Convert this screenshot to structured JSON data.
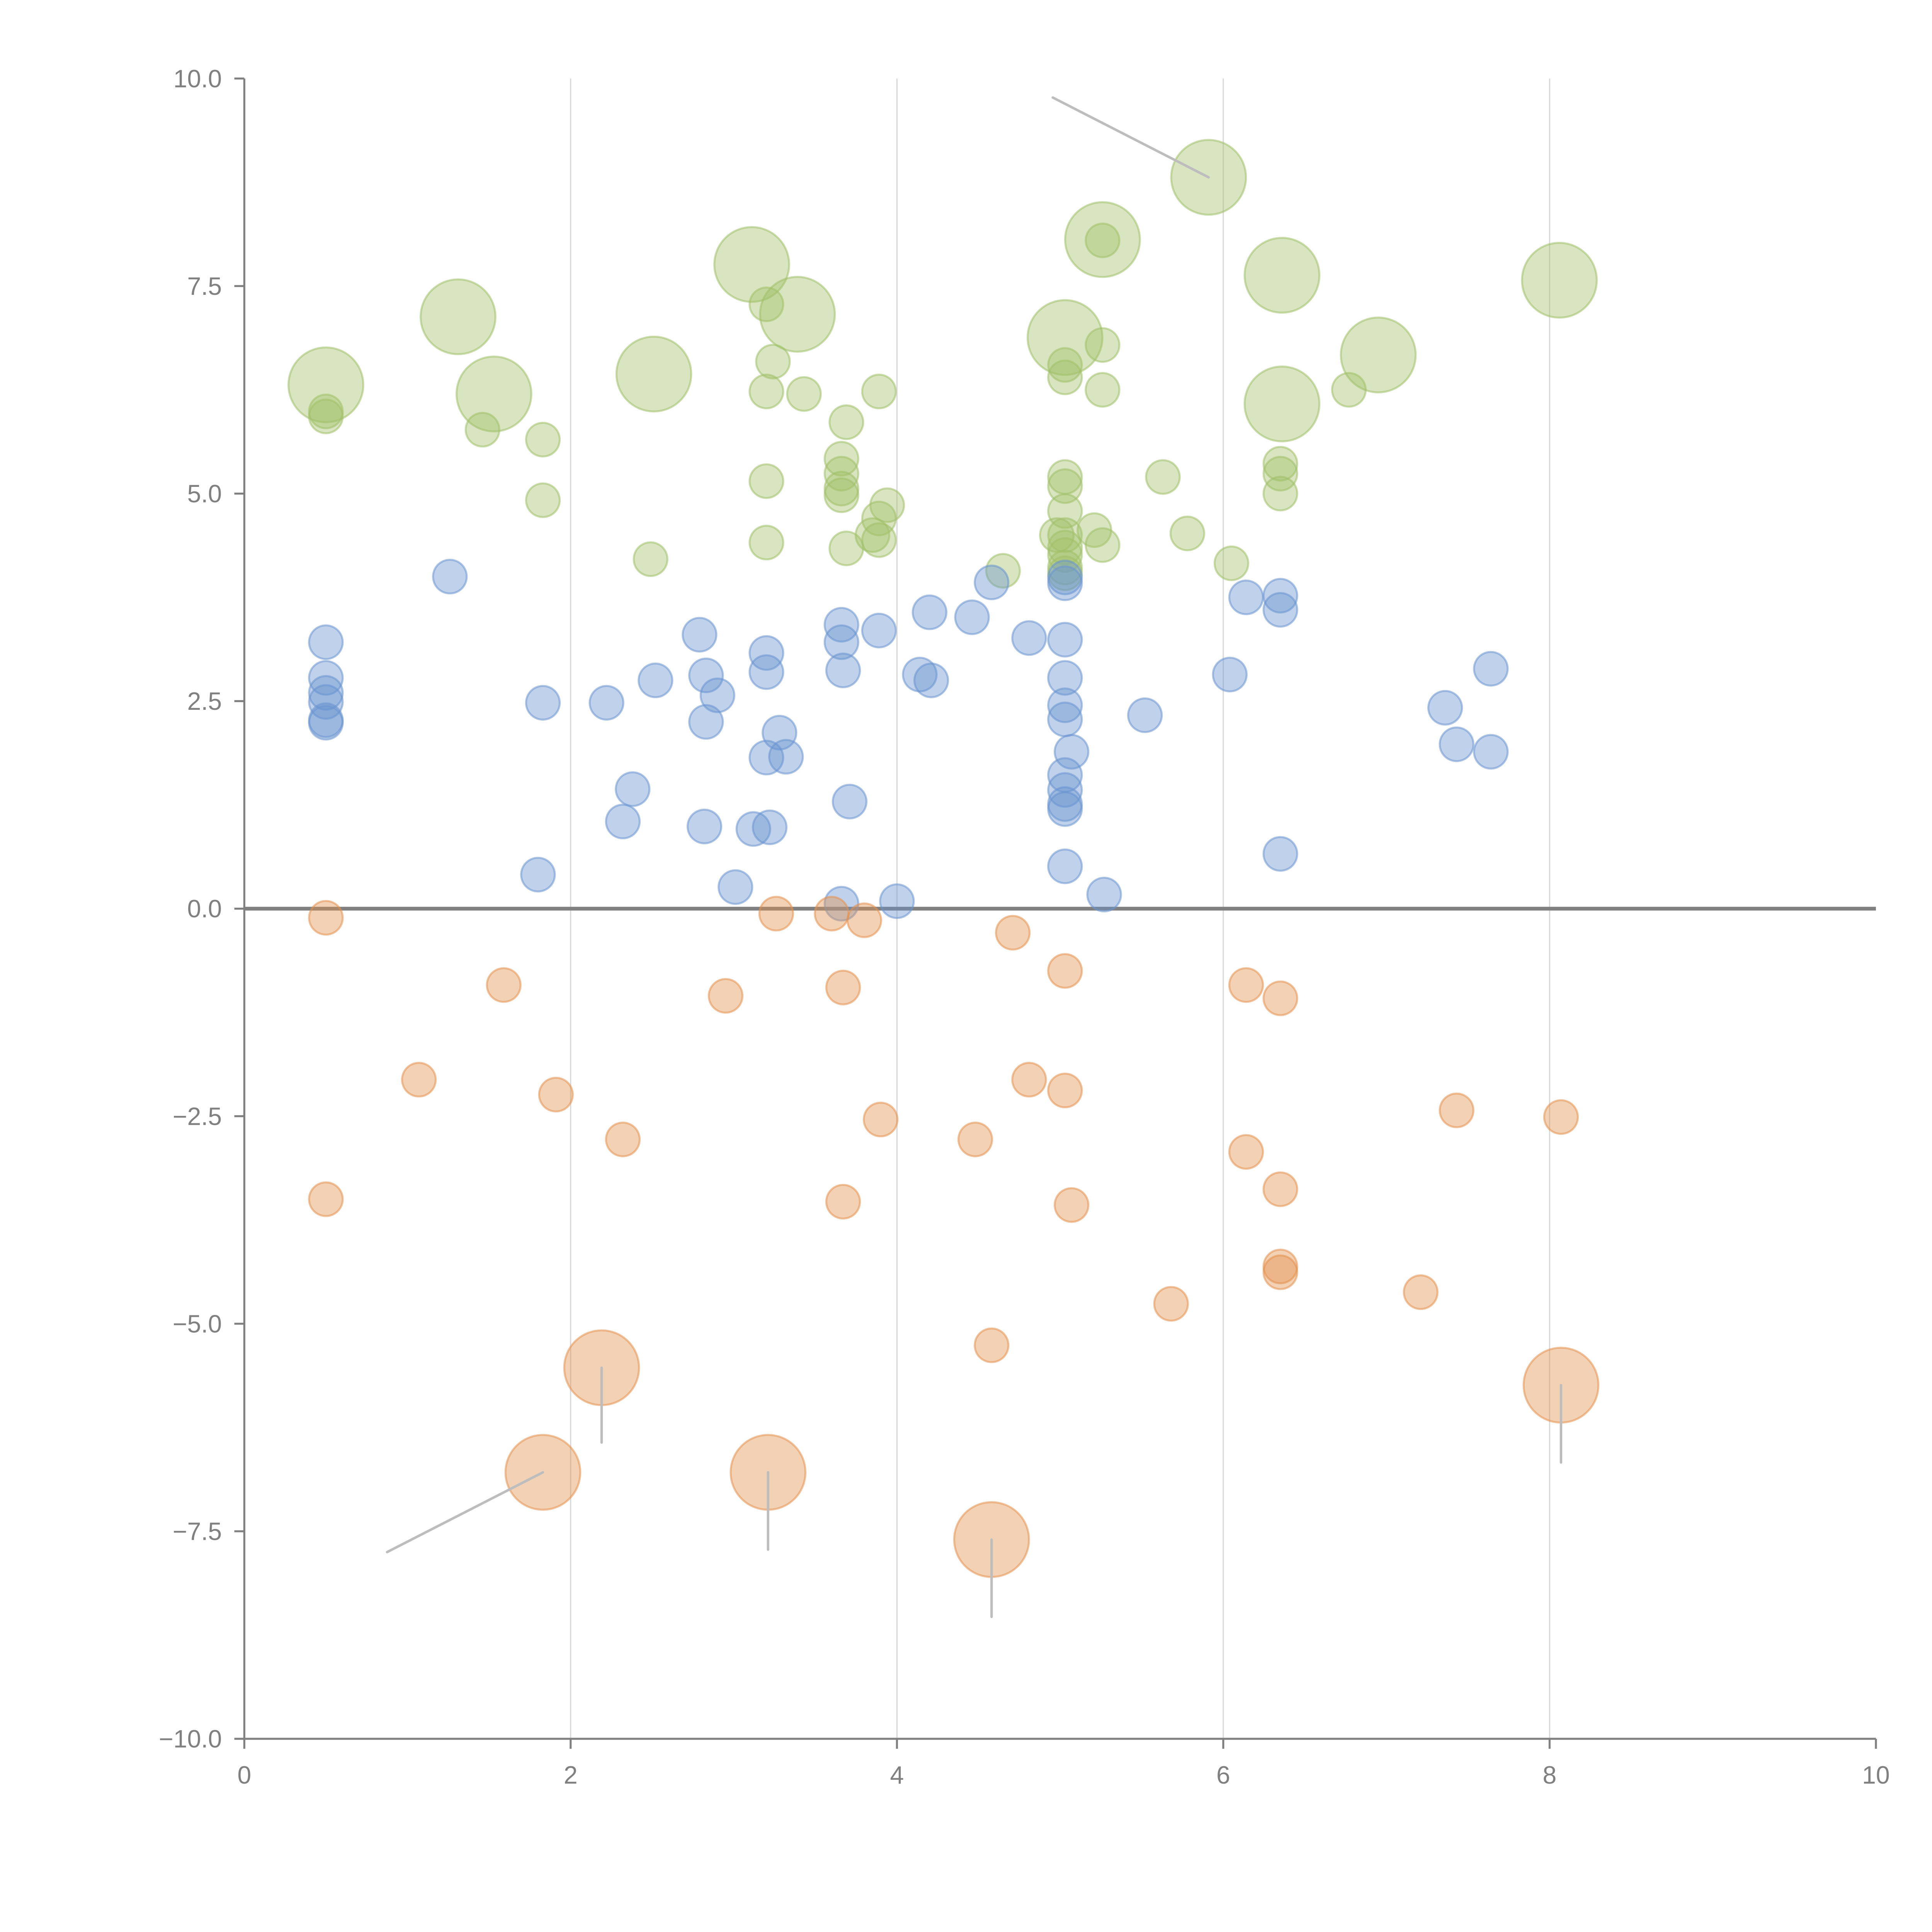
{
  "chart_data": {
    "type": "scatter",
    "title": "",
    "xlabel": "",
    "ylabel": "",
    "xlim": [
      0,
      10
    ],
    "ylim": [
      -10,
      10
    ],
    "x_ticks": [
      "0",
      "2",
      "4",
      "6",
      "8",
      "10"
    ],
    "x_tick_values": [
      0,
      2,
      4,
      6,
      8,
      10
    ],
    "y_ticks": [
      "10.0",
      "7.5",
      "5.0",
      "2.5",
      "0.0",
      "−2.5",
      "−5.0",
      "−7.5",
      "−10.0"
    ],
    "y_tick_values": [
      10,
      7.5,
      5,
      2.5,
      0,
      -2.5,
      -5,
      -7.5,
      -10
    ],
    "grid": "vertical",
    "reference_line_y": 0,
    "legend": "none",
    "series": [
      {
        "name": "green",
        "color": "#a1c06a",
        "points": [
          [
            0.5,
            5.93
          ],
          [
            0.5,
            5.99
          ],
          [
            1.46,
            5.77
          ],
          [
            1.83,
            5.65
          ],
          [
            1.83,
            4.92
          ],
          [
            2.49,
            4.21
          ],
          [
            3.2,
            7.28
          ],
          [
            3.24,
            6.59
          ],
          [
            3.2,
            6.23
          ],
          [
            3.43,
            6.2
          ],
          [
            3.2,
            5.15
          ],
          [
            3.2,
            4.41
          ],
          [
            3.69,
            5.86
          ],
          [
            3.66,
            5.42
          ],
          [
            3.66,
            5.24
          ],
          [
            3.66,
            5.06
          ],
          [
            3.66,
            4.98
          ],
          [
            3.69,
            4.34
          ],
          [
            3.89,
            6.23
          ],
          [
            3.94,
            4.86
          ],
          [
            3.89,
            4.7
          ],
          [
            3.85,
            4.5
          ],
          [
            3.89,
            4.44
          ],
          [
            4.65,
            4.07
          ],
          [
            5.03,
            5.2
          ],
          [
            5.03,
            5.09
          ],
          [
            5.03,
            4.79
          ],
          [
            5.03,
            4.5
          ],
          [
            5.03,
            4.35
          ],
          [
            5.03,
            4.26
          ],
          [
            5.03,
            4.11
          ],
          [
            5.03,
            4.04
          ],
          [
            4.98,
            4.5
          ],
          [
            5.21,
            4.56
          ],
          [
            5.26,
            4.38
          ],
          [
            5.26,
            6.79
          ],
          [
            5.26,
            6.25
          ],
          [
            5.26,
            8.05
          ],
          [
            5.03,
            6.4
          ],
          [
            5.03,
            6.55
          ],
          [
            5.78,
            4.52
          ],
          [
            6.05,
            4.16
          ],
          [
            6.35,
            5.36
          ],
          [
            6.35,
            5.24
          ],
          [
            6.35,
            5.0
          ],
          [
            6.77,
            6.25
          ],
          [
            5.63,
            5.2
          ]
        ],
        "large_points": [
          [
            0.5,
            6.31
          ],
          [
            1.31,
            7.13
          ],
          [
            1.53,
            6.2
          ],
          [
            2.51,
            6.44
          ],
          [
            3.11,
            7.76
          ],
          [
            3.39,
            7.16
          ],
          [
            5.03,
            6.88
          ],
          [
            5.26,
            8.06
          ],
          [
            5.91,
            8.81
          ],
          [
            6.36,
            7.63
          ],
          [
            6.36,
            6.08
          ],
          [
            6.95,
            6.67
          ],
          [
            8.06,
            7.57
          ]
        ]
      },
      {
        "name": "blue",
        "color": "#6a93cf",
        "points": [
          [
            0.5,
            3.21
          ],
          [
            0.5,
            2.78
          ],
          [
            0.5,
            2.6
          ],
          [
            0.5,
            2.49
          ],
          [
            0.5,
            2.27
          ],
          [
            0.5,
            2.24
          ],
          [
            1.26,
            4.0
          ],
          [
            1.83,
            2.48
          ],
          [
            1.8,
            0.41
          ],
          [
            2.22,
            2.48
          ],
          [
            2.32,
            1.05
          ],
          [
            2.38,
            1.44
          ],
          [
            2.52,
            2.75
          ],
          [
            2.79,
            3.3
          ],
          [
            2.83,
            2.81
          ],
          [
            2.83,
            2.25
          ],
          [
            2.9,
            2.57
          ],
          [
            2.82,
            0.99
          ],
          [
            3.01,
            0.26
          ],
          [
            3.12,
            0.96
          ],
          [
            3.2,
            3.08
          ],
          [
            3.2,
            2.85
          ],
          [
            3.2,
            1.82
          ],
          [
            3.22,
            0.98
          ],
          [
            3.28,
            2.12
          ],
          [
            3.32,
            1.83
          ],
          [
            3.66,
            3.42
          ],
          [
            3.66,
            3.21
          ],
          [
            3.67,
            2.87
          ],
          [
            3.66,
            0.06
          ],
          [
            3.71,
            1.29
          ],
          [
            3.89,
            3.35
          ],
          [
            4.0,
            0.09
          ],
          [
            4.14,
            2.82
          ],
          [
            4.2,
            3.57
          ],
          [
            4.21,
            2.75
          ],
          [
            4.46,
            3.51
          ],
          [
            4.58,
            3.93
          ],
          [
            4.81,
            3.26
          ],
          [
            5.03,
            3.99
          ],
          [
            5.03,
            3.92
          ],
          [
            5.03,
            3.24
          ],
          [
            5.03,
            2.78
          ],
          [
            5.03,
            2.45
          ],
          [
            5.03,
            2.28
          ],
          [
            5.07,
            1.89
          ],
          [
            5.03,
            1.61
          ],
          [
            5.03,
            1.43
          ],
          [
            5.03,
            1.26
          ],
          [
            5.03,
            1.2
          ],
          [
            5.03,
            0.51
          ],
          [
            5.27,
            0.17
          ],
          [
            5.52,
            2.33
          ],
          [
            6.04,
            2.82
          ],
          [
            6.14,
            3.75
          ],
          [
            6.35,
            3.77
          ],
          [
            6.35,
            3.6
          ],
          [
            6.35,
            0.66
          ],
          [
            7.36,
            2.42
          ],
          [
            7.43,
            1.98
          ],
          [
            7.64,
            2.89
          ],
          [
            7.64,
            1.89
          ]
        ]
      },
      {
        "name": "orange",
        "color": "#e3924f",
        "points": [
          [
            0.5,
            -0.11
          ],
          [
            1.59,
            -0.92
          ],
          [
            1.07,
            -2.06
          ],
          [
            1.91,
            -2.24
          ],
          [
            2.32,
            -2.78
          ],
          [
            0.5,
            -3.5
          ],
          [
            2.95,
            -1.05
          ],
          [
            3.26,
            -0.06
          ],
          [
            3.6,
            -0.06
          ],
          [
            3.8,
            -0.14
          ],
          [
            3.67,
            -0.95
          ],
          [
            3.9,
            -2.54
          ],
          [
            3.67,
            -3.53
          ],
          [
            4.48,
            -2.78
          ],
          [
            4.71,
            -0.29
          ],
          [
            4.81,
            -2.06
          ],
          [
            5.03,
            -0.75
          ],
          [
            5.03,
            -2.19
          ],
          [
            5.07,
            -3.57
          ],
          [
            5.68,
            -4.76
          ],
          [
            4.58,
            -5.26
          ],
          [
            6.14,
            -0.92
          ],
          [
            6.14,
            -2.93
          ],
          [
            6.35,
            -1.08
          ],
          [
            6.35,
            -3.38
          ],
          [
            6.35,
            -4.31
          ],
          [
            6.35,
            -4.38
          ],
          [
            7.21,
            -4.62
          ],
          [
            7.43,
            -2.43
          ],
          [
            8.07,
            -2.51
          ]
        ],
        "large_points": [
          [
            2.19,
            -5.53
          ],
          [
            1.83,
            -6.79
          ],
          [
            3.21,
            -6.79
          ],
          [
            4.58,
            -7.6
          ],
          [
            8.07,
            -5.74
          ]
        ]
      }
    ]
  }
}
